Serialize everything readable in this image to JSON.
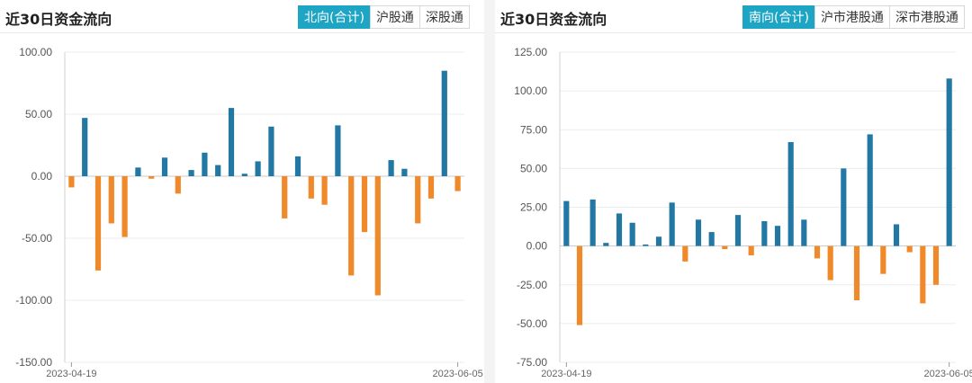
{
  "colors": {
    "positive": "#2377a3",
    "negative": "#f0892a",
    "accent": "#1ea5c4"
  },
  "panels": [
    {
      "title": "近30日资金流向",
      "tabs": [
        {
          "label": "北向(合计)",
          "active": true
        },
        {
          "label": "沪股通",
          "active": false
        },
        {
          "label": "深股通",
          "active": false
        }
      ],
      "chart_data": {
        "type": "bar",
        "ylim": [
          -150,
          100
        ],
        "yticks": [
          100,
          50,
          0,
          -50,
          -100,
          -150
        ],
        "ytick_labels": [
          "100.00",
          "50.00",
          "0.00",
          "-50.00",
          "-100.00",
          "-150.00"
        ],
        "x_labels": [
          "2023-04-19",
          "2023-06-05"
        ],
        "values": [
          -9,
          47,
          -76,
          -38,
          -49,
          7,
          -2,
          15,
          -14,
          5,
          19,
          9,
          55,
          2,
          12,
          40,
          -34,
          16,
          -18,
          -23,
          41,
          -80,
          -45,
          -96,
          13,
          6,
          -38,
          -18,
          85,
          -12
        ]
      }
    },
    {
      "title": "近30日资金流向",
      "tabs": [
        {
          "label": "南向(合计)",
          "active": true
        },
        {
          "label": "沪市港股通",
          "active": false
        },
        {
          "label": "深市港股通",
          "active": false
        }
      ],
      "chart_data": {
        "type": "bar",
        "ylim": [
          -75,
          125
        ],
        "yticks": [
          125,
          100,
          75,
          50,
          25,
          0,
          -25,
          -50,
          -75
        ],
        "ytick_labels": [
          "125.00",
          "100.00",
          "75.00",
          "50.00",
          "25.00",
          "0.00",
          "-25.00",
          "-50.00",
          "-75.00"
        ],
        "x_labels": [
          "2023-04-19",
          "2023-06-05"
        ],
        "values": [
          29,
          -51,
          30,
          2,
          21,
          15,
          1,
          6,
          28,
          -10,
          17,
          9,
          -2,
          20,
          -6,
          16,
          13,
          67,
          17,
          -8,
          -22,
          50,
          -35,
          72,
          -18,
          14,
          -4,
          -37,
          -25,
          108
        ]
      }
    }
  ]
}
